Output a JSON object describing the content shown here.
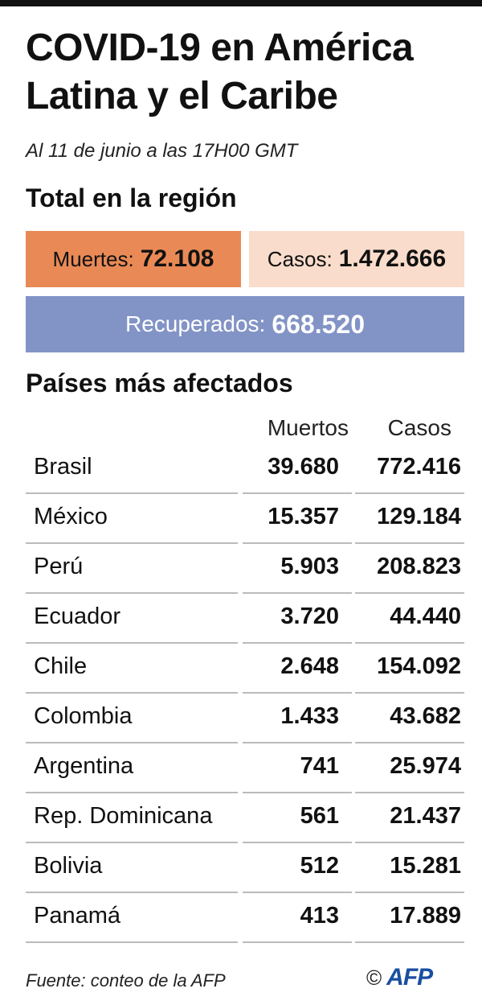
{
  "header": {
    "title": "COVID-19 en América Latina y el Caribe",
    "subtitle": "Al 11 de junio a las 17H00  GMT"
  },
  "region": {
    "heading": "Total en la región",
    "deaths_label": "Muertes:",
    "deaths_value": "72.108",
    "cases_label": "Casos:",
    "cases_value": "1.472.666",
    "recovered_label": "Recuperados:",
    "recovered_value": "668.520"
  },
  "colors": {
    "deaths_box": "#e98a56",
    "cases_box": "#f9dccb",
    "recovered_box": "#8293c6"
  },
  "table": {
    "heading": "Países más afectados",
    "columns": [
      "Muertos",
      "Casos"
    ],
    "rows": [
      {
        "country": "Brasil",
        "deaths": "39.680",
        "cases": "772.416"
      },
      {
        "country": "México",
        "deaths": "15.357",
        "cases": "129.184"
      },
      {
        "country": "Perú",
        "deaths": "5.903",
        "cases": "208.823"
      },
      {
        "country": "Ecuador",
        "deaths": "3.720",
        "cases": "44.440"
      },
      {
        "country": "Chile",
        "deaths": "2.648",
        "cases": "154.092"
      },
      {
        "country": "Colombia",
        "deaths": "1.433",
        "cases": "43.682"
      },
      {
        "country": "Argentina",
        "deaths": "741",
        "cases": "25.974"
      },
      {
        "country": "Rep. Dominicana",
        "deaths": "561",
        "cases": "21.437"
      },
      {
        "country": "Bolivia",
        "deaths": "512",
        "cases": "15.281"
      },
      {
        "country": "Panamá",
        "deaths": "413",
        "cases": "17.889"
      }
    ]
  },
  "footer": {
    "source": "Fuente: conteo de la AFP",
    "copyright": "©",
    "logo": "AFP"
  }
}
